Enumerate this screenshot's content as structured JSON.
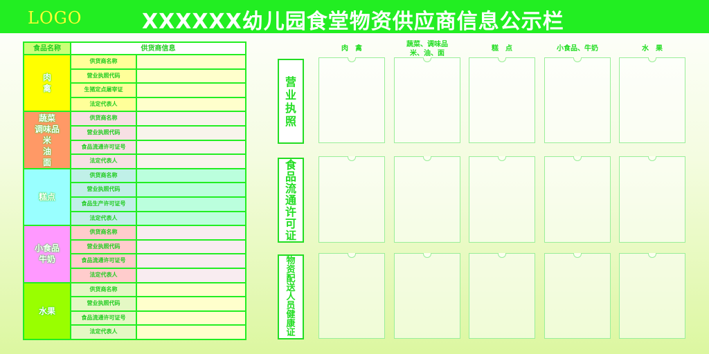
{
  "header": {
    "logo": "LOGO",
    "title": "XXXXXX幼儿园食堂物资供应商信息公示栏"
  },
  "table": {
    "col_headers": [
      "食品名称",
      "供货商信息"
    ],
    "categories": [
      {
        "name": "肉\n禽",
        "color": "#ffff00",
        "label_bg": "#ffff99",
        "value_bg": "#ffffcc",
        "fields": [
          "供货商名称",
          "营业执照代码",
          "生猪定点屠宰证",
          "法定代表人"
        ]
      },
      {
        "name": "蔬菜\n调味品\n米\n油\n面",
        "color": "#ff9966",
        "label_bg": "#f7e0e4",
        "value_bg": "#f8f4ec",
        "fields": [
          "供货商名称",
          "营业执照代码",
          "食品流通许可证号",
          "法定代表人"
        ]
      },
      {
        "name": "糕点",
        "color": "#99ffff",
        "label_bg": "#c0f0e8",
        "value_bg": "#bbffdd",
        "fields": [
          "供货商名称",
          "营业执照代码",
          "食品生产许可证号",
          "法定代表人"
        ]
      },
      {
        "name": "小食品\n牛奶",
        "color": "#ff99ff",
        "label_bg": "#ffcccc",
        "value_bg": "#f8ecf0",
        "fields": [
          "供货商名称",
          "营业执照代码",
          "食品流通许可证号",
          "法定代表人"
        ]
      },
      {
        "name": "水果",
        "color": "#99ff00",
        "label_bg": "#e4f8c4",
        "value_bg": "#ffffcc",
        "fields": [
          "供货商名称",
          "营业执照代码",
          "食品流通许可证号",
          "法定代表人"
        ]
      }
    ]
  },
  "board": {
    "columns": [
      "肉　禽",
      "蔬菜、调味品\n米、油、面",
      "糕　点",
      "小食品、牛奶",
      "水　果"
    ],
    "rows": [
      "营\n业\n执\n照",
      "食\n品\n流\n通\n许\n可\n证",
      "物\n资\n配\n送\n人\n员\n健\n康\n证"
    ]
  },
  "colors": {
    "accent": "#22ee22"
  }
}
